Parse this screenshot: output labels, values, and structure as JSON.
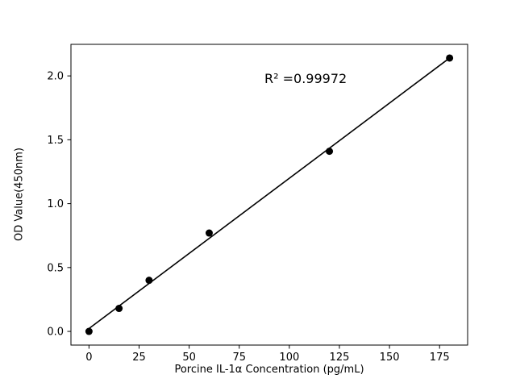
{
  "figure": {
    "background": "#ffffff"
  },
  "chart_data": {
    "type": "scatter",
    "title": "",
    "xlabel": "Porcine IL-1α Concentration (pg/mL)",
    "ylabel": "OD Value(450nm)",
    "annotation": "R² =0.99972",
    "x": [
      0,
      15,
      30,
      60,
      120,
      180
    ],
    "y": [
      0.0,
      0.18,
      0.4,
      0.77,
      1.41,
      2.14
    ],
    "fit_line": {
      "slope": 0.011765,
      "intercept": 0.0225,
      "x_range": [
        0,
        180
      ]
    },
    "xticks": [
      0,
      25,
      50,
      75,
      100,
      125,
      150,
      175
    ],
    "xtick_labels": [
      "0",
      "25",
      "50",
      "75",
      "100",
      "125",
      "150",
      "175"
    ],
    "yticks": [
      0.0,
      0.5,
      1.0,
      1.5,
      2.0
    ],
    "ytick_labels": [
      "0.0",
      "0.5",
      "1.0",
      "1.5",
      "2.0"
    ],
    "xlim": [
      -9,
      189
    ],
    "ylim": [
      -0.107,
      2.247
    ],
    "grid": false,
    "legend": null,
    "point_color": "#000000",
    "line_color": "#000000",
    "axis_color": "#000000"
  }
}
